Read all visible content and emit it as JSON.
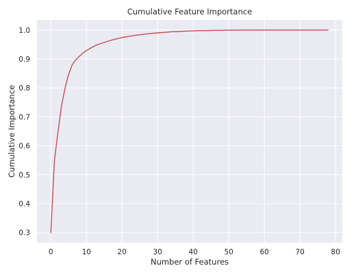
{
  "chart_data": {
    "type": "line",
    "title": "Cumulative Feature Importance",
    "xlabel": "Number of Features",
    "ylabel": "Cumulative Importance",
    "xlim": [
      -3.9,
      81.9
    ],
    "ylim": [
      0.265,
      1.035
    ],
    "x_ticks": [
      0,
      10,
      20,
      30,
      40,
      50,
      60,
      70,
      80
    ],
    "y_ticks": [
      0.3,
      0.4,
      0.5,
      0.6,
      0.7,
      0.8,
      0.9,
      1.0
    ],
    "y_tick_labels": [
      "0.3",
      "0.4",
      "0.5",
      "0.6",
      "0.7",
      "0.8",
      "0.9",
      "1.0"
    ],
    "grid": true,
    "colors": {
      "background": "#eaeaf2",
      "grid": "#ffffff",
      "line": "#c44e52"
    },
    "series": [
      {
        "x": [
          0,
          1,
          2,
          3,
          4,
          5,
          6,
          7,
          8,
          9,
          10,
          11,
          12,
          13,
          14,
          15,
          16,
          17,
          18,
          19,
          20,
          22,
          24,
          26,
          28,
          30,
          32,
          34,
          36,
          38,
          40,
          42,
          44,
          46,
          48,
          50,
          55,
          60,
          65,
          70,
          75,
          78
        ],
        "y": [
          0.298,
          0.548,
          0.648,
          0.738,
          0.8,
          0.847,
          0.88,
          0.897,
          0.909,
          0.92,
          0.929,
          0.936,
          0.943,
          0.949,
          0.953,
          0.957,
          0.961,
          0.965,
          0.968,
          0.971,
          0.974,
          0.978,
          0.982,
          0.985,
          0.988,
          0.99,
          0.992,
          0.994,
          0.995,
          0.996,
          0.997,
          0.998,
          0.998,
          0.999,
          0.999,
          0.9995,
          1.0,
          1.0,
          1.0,
          1.0,
          1.0,
          1.0
        ]
      }
    ]
  }
}
